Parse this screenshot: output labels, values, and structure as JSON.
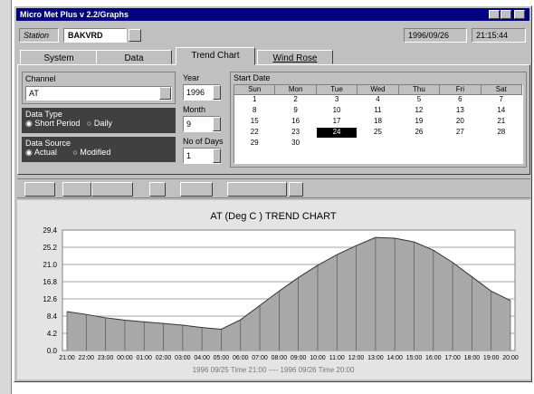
{
  "window": {
    "title": "Micro Met Plus v 2.2/Graphs"
  },
  "header": {
    "station_label": "Station",
    "station": "BAKVRD",
    "date": "1996/09/26",
    "time": "21:15:44"
  },
  "tabs": [
    "System",
    "Data",
    "Trend Chart",
    "Wind Rose"
  ],
  "controls": {
    "channel_label": "Channel",
    "channel": "AT",
    "data_type_label": "Data Type",
    "data_type_options": [
      "Short Period",
      "Daily"
    ],
    "data_source_label": "Data Source",
    "data_source_options": [
      "Actual",
      "Modified"
    ],
    "year_label": "Year",
    "year": "1996",
    "month_label": "Month",
    "month": "9",
    "days_label": "No of Days",
    "days": "1"
  },
  "calendar": {
    "title": "Start Date",
    "weekdays": [
      "Sun",
      "Mon",
      "Tue",
      "Wed",
      "Thu",
      "Fri",
      "Sat"
    ],
    "weeks": [
      [
        1,
        2,
        3,
        4,
        5,
        6,
        7
      ],
      [
        8,
        9,
        10,
        11,
        12,
        13,
        14
      ],
      [
        15,
        16,
        17,
        18,
        19,
        20,
        21
      ],
      [
        22,
        23,
        24,
        25,
        26,
        27,
        28
      ],
      [
        29,
        30
      ]
    ],
    "selected": 24
  },
  "chart_data": {
    "type": "area",
    "title": "AT (Deg C ) TREND CHART",
    "footer": "1996 09/25 Time 21:00 ---- 1996 09/26 Time 20:00",
    "categories": [
      "21:00",
      "22:00",
      "23:00",
      "00:00",
      "01:00",
      "02:00",
      "03:00",
      "04:00",
      "05:00",
      "06:00",
      "07:00",
      "08:00",
      "09:00",
      "10:00",
      "11:00",
      "12:00",
      "13:00",
      "14:00",
      "15:00",
      "16:00",
      "17:00",
      "18:00",
      "19:00",
      "20:00"
    ],
    "values": [
      9.5,
      8.8,
      8.0,
      7.4,
      7.0,
      6.6,
      6.2,
      5.6,
      5.2,
      7.5,
      11.0,
      14.5,
      17.8,
      20.8,
      23.4,
      25.6,
      27.6,
      27.4,
      26.5,
      24.5,
      21.5,
      18.0,
      14.5,
      12.2
    ],
    "color": "#a8a8a8",
    "ylim": [
      0,
      29.4
    ],
    "yticks": [
      {
        "value": 0,
        "label": "0.0"
      },
      4.2,
      8.4,
      12.6,
      16.8,
      {
        "value": 21,
        "label": "21.0"
      },
      25.2,
      29.4
    ],
    "grid": true
  }
}
